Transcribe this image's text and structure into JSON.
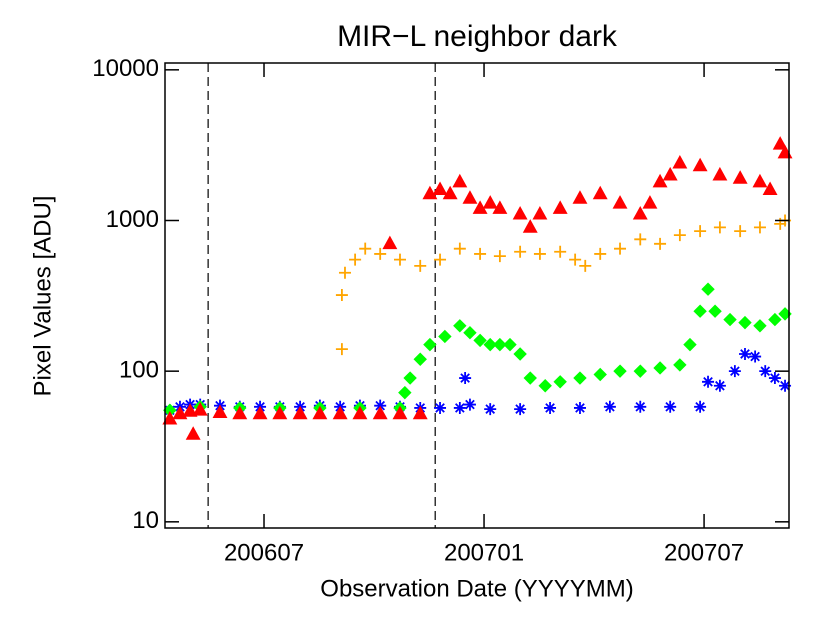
{
  "chart_data": {
    "type": "scatter",
    "title": "MIR−L neighbor dark",
    "x_label": "Observation Date (YYYYMM)",
    "y_label": "Pixel Values [ADU]",
    "y_scale": "log",
    "xlim": [
      2006.275,
      2007.693
    ],
    "ylim": [
      9.1,
      11100
    ],
    "xticks": [
      {
        "value": 2006.5,
        "label": "200607"
      },
      {
        "value": 2007.0,
        "label": "200701"
      },
      {
        "value": 2007.5,
        "label": "200707"
      }
    ],
    "yticks": [
      10,
      100,
      1000,
      10000
    ],
    "vlines": [
      2006.373,
      2006.889
    ],
    "series": [
      {
        "color": "#0000ff",
        "marker": "asterisk",
        "x": [
          2006.286,
          2006.309,
          2006.332,
          2006.355,
          2006.4,
          2006.445,
          2006.491,
          2006.536,
          2006.582,
          2006.627,
          2006.673,
          2006.718,
          2006.764,
          2006.809,
          2006.855,
          2006.9,
          2006.945,
          2006.957,
          2006.968,
          2007.014,
          2007.082,
          2007.15,
          2007.218,
          2007.286,
          2007.355,
          2007.423,
          2007.491,
          2007.509,
          2007.536,
          2007.57,
          2007.593,
          2007.616,
          2007.639,
          2007.661,
          2007.684
        ],
        "values": [
          55,
          58,
          60,
          60,
          59,
          58,
          58,
          58,
          58,
          59,
          58,
          59,
          59,
          58,
          57,
          57,
          57,
          90,
          60,
          56,
          56,
          57,
          57,
          58,
          58,
          58,
          58,
          85,
          80,
          100,
          130,
          125,
          100,
          90,
          80
        ]
      },
      {
        "color": "#00ff00",
        "marker": "diamond",
        "x": [
          2006.286,
          2006.355,
          2006.445,
          2006.536,
          2006.627,
          2006.718,
          2006.809,
          2006.82,
          2006.832,
          2006.855,
          2006.877,
          2006.911,
          2006.945,
          2006.968,
          2006.991,
          2007.014,
          2007.036,
          2007.059,
          2007.082,
          2007.105,
          2007.139,
          2007.173,
          2007.218,
          2007.264,
          2007.309,
          2007.355,
          2007.4,
          2007.445,
          2007.468,
          2007.491,
          2007.509,
          2007.525,
          2007.559,
          2007.593,
          2007.627,
          2007.661,
          2007.684
        ],
        "values": [
          55,
          58,
          57,
          57,
          57,
          57,
          57,
          72,
          90,
          120,
          150,
          170,
          200,
          180,
          160,
          150,
          150,
          150,
          130,
          90,
          80,
          85,
          90,
          95,
          100,
          100,
          105,
          110,
          150,
          250,
          350,
          250,
          220,
          210,
          200,
          220,
          240
        ]
      },
      {
        "color": "#ffa500",
        "marker": "plus",
        "x": [
          2006.677,
          2006.677,
          2006.684,
          2006.707,
          2006.73,
          2006.764,
          2006.809,
          2006.855,
          2006.9,
          2006.945,
          2006.991,
          2007.036,
          2007.082,
          2007.127,
          2007.173,
          2007.207,
          2007.23,
          2007.264,
          2007.309,
          2007.355,
          2007.4,
          2007.445,
          2007.491,
          2007.536,
          2007.582,
          2007.627,
          2007.673,
          2007.684
        ],
        "values": [
          320,
          140,
          450,
          550,
          650,
          600,
          550,
          500,
          550,
          650,
          600,
          580,
          620,
          600,
          620,
          550,
          500,
          600,
          650,
          750,
          700,
          800,
          850,
          900,
          850,
          900,
          950,
          1000
        ]
      },
      {
        "color": "#ff0000",
        "marker": "triangle",
        "x": [
          2006.286,
          2006.309,
          2006.332,
          2006.339,
          2006.355,
          2006.4,
          2006.445,
          2006.491,
          2006.536,
          2006.582,
          2006.627,
          2006.673,
          2006.718,
          2006.764,
          2006.786,
          2006.809,
          2006.855,
          2006.877,
          2006.9,
          2006.923,
          2006.945,
          2006.968,
          2006.991,
          2007.014,
          2007.036,
          2007.082,
          2007.105,
          2007.127,
          2007.173,
          2007.218,
          2007.264,
          2007.309,
          2007.355,
          2007.377,
          2007.4,
          2007.423,
          2007.445,
          2007.491,
          2007.536,
          2007.582,
          2007.627,
          2007.65,
          2007.673,
          2007.684
        ],
        "values": [
          48,
          52,
          54,
          38,
          55,
          53,
          52,
          52,
          52,
          52,
          52,
          52,
          52,
          52,
          700,
          52,
          52,
          1500,
          1600,
          1500,
          1800,
          1400,
          1200,
          1300,
          1200,
          1100,
          900,
          1100,
          1200,
          1400,
          1500,
          1300,
          1100,
          1300,
          1800,
          2000,
          2400,
          2300,
          2000,
          1900,
          1800,
          1600,
          3200,
          2800
        ]
      }
    ]
  }
}
